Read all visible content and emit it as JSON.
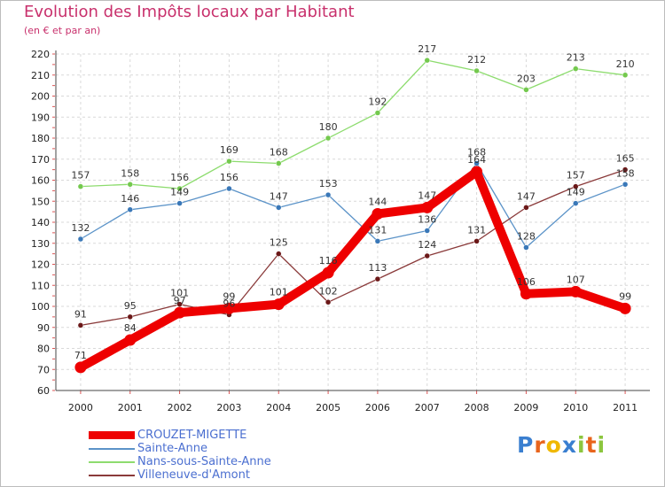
{
  "header": {
    "title": "Evolution des Impôts locaux par Habitant",
    "subtitle": "(en € et par an)"
  },
  "chart_data": {
    "type": "line",
    "x": [
      "2000",
      "2001",
      "2002",
      "2003",
      "2004",
      "2005",
      "2006",
      "2007",
      "2008",
      "2009",
      "2010",
      "2011"
    ],
    "ylim": [
      60,
      220
    ],
    "yticks": [
      60,
      70,
      80,
      90,
      100,
      110,
      120,
      130,
      140,
      150,
      160,
      170,
      180,
      190,
      200,
      210,
      220
    ],
    "grid": true,
    "legend_position": "bottom-left",
    "series": [
      {
        "name": "Sainte-Anne",
        "color": "#5b93c8",
        "point_color": "#3a78b8",
        "width": "thin",
        "values": [
          132,
          146,
          149,
          156,
          147,
          153,
          131,
          136,
          168,
          128,
          149,
          158
        ]
      },
      {
        "name": "Nans-sous-Sainte-Anne",
        "color": "#8ddc6e",
        "point_color": "#74c94e",
        "width": "thin",
        "values": [
          157,
          158,
          156,
          169,
          168,
          180,
          192,
          217,
          212,
          203,
          213,
          210
        ]
      },
      {
        "name": "Villeneuve-d'Amont",
        "color": "#8a3a3a",
        "point_color": "#6b1818",
        "width": "thin",
        "values": [
          91,
          95,
          101,
          96,
          125,
          102,
          113,
          124,
          131,
          147,
          157,
          165
        ]
      },
      {
        "name": "CROUZET-MIGETTE",
        "color": "#ee0000",
        "point_color": "#ee0000",
        "width": "thick",
        "values": [
          71,
          84,
          97,
          99,
          101,
          116,
          144,
          147,
          164,
          106,
          107,
          99
        ]
      }
    ],
    "legend_order": [
      "CROUZET-MIGETTE",
      "Sainte-Anne",
      "Nans-sous-Sainte-Anne",
      "Villeneuve-d'Amont"
    ]
  },
  "logo": {
    "letters": [
      "P",
      "r",
      "o",
      "x",
      "i",
      "t",
      "i"
    ],
    "colors": [
      "#3a7fd0",
      "#e8641c",
      "#f0b800",
      "#3a7fd0",
      "#8cc63e",
      "#e8641c",
      "#8cc63e"
    ]
  }
}
